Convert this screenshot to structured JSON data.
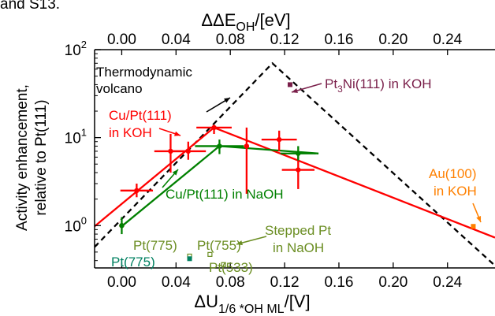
{
  "fragment_text": "and S13.",
  "chart_data": {
    "type": "scatter",
    "bottom_axis": {
      "label_prefix": "ΔU",
      "label_sub": "1/6 *OH ML",
      "label_suffix": "/[V]",
      "range": [
        -0.02,
        0.275
      ],
      "ticks": [
        0.0,
        0.04,
        0.08,
        0.12,
        0.16,
        0.2,
        0.24
      ],
      "tick_labels": [
        "0.00",
        "0.04",
        "0.08",
        "0.12",
        "0.16",
        "0.20",
        "0.24"
      ]
    },
    "top_axis": {
      "label_prefix": "ΔΔE",
      "label_sub": "OH",
      "label_suffix": "/[eV]",
      "ticks": [
        0.0,
        0.04,
        0.08,
        0.12,
        0.16,
        0.2,
        0.24
      ],
      "tick_labels": [
        "0.00",
        "0.04",
        "0.08",
        "0.12",
        "0.16",
        "0.20",
        "0.24"
      ]
    },
    "y_axis": {
      "label_line1": "Activity enhancement,",
      "label_line2": "relative to Pt(111)",
      "scale": "log",
      "range": [
        0.33,
        100
      ],
      "ticks": [
        {
          "value": 1,
          "base": "10",
          "exp": "0"
        },
        {
          "value": 10,
          "base": "10",
          "exp": "1"
        },
        {
          "value": 100,
          "base": "10",
          "exp": "2"
        }
      ]
    },
    "lines": [
      {
        "name": "Thermodynamic volcano",
        "style": "dashed",
        "color": "#000000",
        "x": [
          -0.02,
          0.111,
          0.275
        ],
        "y": [
          0.57,
          70,
          0.35
        ]
      },
      {
        "name": "Cu/Pt(111) in KOH fit",
        "style": "solid",
        "color": "#ff0000",
        "x": [
          -0.02,
          0.068,
          0.275
        ],
        "y": [
          0.98,
          13,
          0.73
        ]
      },
      {
        "name": "Cu/Pt(111) in NaOH fit",
        "style": "solid",
        "color": "#008000",
        "x": [
          0.0,
          0.072,
          0.145
        ],
        "y": [
          0.98,
          8.0,
          6.6
        ]
      }
    ],
    "series": [
      {
        "name": "Cu/Pt(111) in KOH",
        "color": "#ff0000",
        "points": [
          {
            "x": 0.0,
            "y": 1.0,
            "xerr": 0.0,
            "ylo": 1.0,
            "yhi": 1.0
          },
          {
            "x": 0.011,
            "y": 2.5,
            "xerr": 0.012,
            "ylo": 2.1,
            "yhi": 3.0
          },
          {
            "x": 0.036,
            "y": 7.0,
            "xerr": 0.012,
            "ylo": 4.0,
            "yhi": 11.0
          },
          {
            "x": 0.049,
            "y": 7.0,
            "xerr": 0.013,
            "ylo": 5.6,
            "yhi": 9.0
          },
          {
            "x": 0.068,
            "y": 13.0,
            "xerr": 0.013,
            "ylo": 11.0,
            "yhi": 14.0
          },
          {
            "x": 0.092,
            "y": 8.0,
            "xerr": 0.0,
            "ylo": 2.3,
            "yhi": 13.0
          },
          {
            "x": 0.116,
            "y": 9.5,
            "xerr": 0.013,
            "ylo": 7.0,
            "yhi": 12.0
          },
          {
            "x": 0.13,
            "y": 4.3,
            "xerr": 0.012,
            "ylo": 2.6,
            "yhi": 6.8
          }
        ]
      },
      {
        "name": "Cu/Pt(111) in NaOH",
        "color": "#008000",
        "points": [
          {
            "x": 0.0,
            "y": 1.0,
            "xerr": 0.0,
            "ylo": 0.8,
            "yhi": 1.25
          },
          {
            "x": 0.072,
            "y": 8.0,
            "xerr": 0.018,
            "ylo": 6.5,
            "yhi": 9.5
          },
          {
            "x": 0.13,
            "y": 6.6,
            "xerr": 0.013,
            "ylo": 5.5,
            "yhi": 8.0
          }
        ]
      },
      {
        "name": "Pt3Ni(111) in KOH",
        "color": "#7a1f4a",
        "points": [
          {
            "x": 0.124,
            "y": 40.0
          }
        ]
      },
      {
        "name": "Au(100) in KOH",
        "color": "#ff8000",
        "points": [
          {
            "x": 0.259,
            "y": 0.98
          }
        ]
      },
      {
        "name": "Stepped Pt in NaOH",
        "color": "#6b8e23",
        "points": [
          {
            "x": 0.05,
            "y": 0.45,
            "label": "Pt(775)"
          },
          {
            "x": 0.065,
            "y": 0.47,
            "label": "Pt(755)"
          },
          {
            "x": 0.075,
            "y": 0.36,
            "label": "Pt(533)"
          }
        ]
      },
      {
        "name": "Pt(775)",
        "color": "#008060",
        "points": [
          {
            "x": 0.05,
            "y": 0.42
          }
        ]
      }
    ],
    "annotations": [
      {
        "id": "volcano",
        "lines": [
          "Thermodynamic",
          "volcano"
        ],
        "color": "#000000"
      },
      {
        "id": "cu_koh",
        "lines": [
          "Cu/Pt(111)",
          "in KOH"
        ],
        "color": "#ff0000"
      },
      {
        "id": "cu_naoh",
        "lines": [
          "Cu/Pt(111) in NaOH"
        ],
        "color": "#008000"
      },
      {
        "id": "pt3ni",
        "lines": [
          "Pt",
          "3",
          "Ni(111) in KOH"
        ],
        "color": "#7a1f4a"
      },
      {
        "id": "au",
        "lines": [
          "Au(100)",
          "in KOH"
        ],
        "color": "#ff8000"
      },
      {
        "id": "stepped",
        "lines": [
          "Stepped Pt",
          "in NaOH"
        ],
        "color": "#6b8e23"
      },
      {
        "id": "pt775_olive",
        "lines": [
          "Pt(775)"
        ],
        "color": "#6b8e23"
      },
      {
        "id": "pt775_teal",
        "lines": [
          "Pt(775)"
        ],
        "color": "#008060"
      },
      {
        "id": "pt755",
        "lines": [
          "Pt(755)"
        ],
        "color": "#6b8e23"
      },
      {
        "id": "pt533",
        "lines": [
          "Pt(533)"
        ],
        "color": "#6b8e23"
      }
    ]
  }
}
